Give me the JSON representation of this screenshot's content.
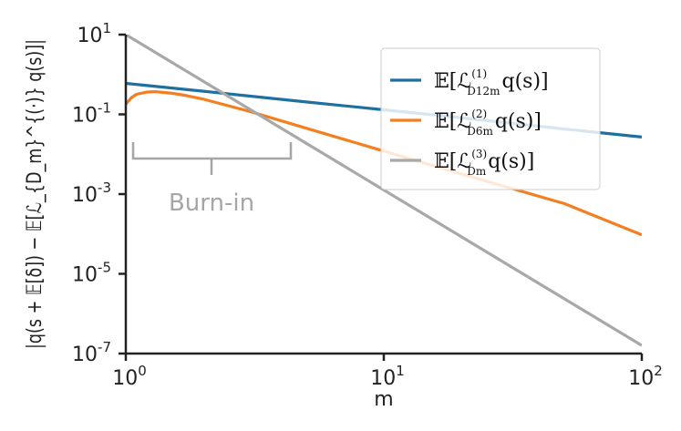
{
  "chart_data": {
    "type": "line",
    "xscale": "log",
    "yscale": "log",
    "xlim": [
      1,
      100
    ],
    "ylim": [
      1e-07,
      10
    ],
    "xlabel": "m",
    "ylabel": "|q(s + 𝔼[δ]) − 𝔼[ℒ_{D_m}^{(·)} q(s)]|",
    "xticks": [
      {
        "value": 1,
        "base": "10",
        "exp": "0"
      },
      {
        "value": 10,
        "base": "10",
        "exp": "1"
      },
      {
        "value": 100,
        "base": "10",
        "exp": "2"
      }
    ],
    "yticks": [
      {
        "value": 10,
        "base": "10",
        "exp": "1"
      },
      {
        "value": 0.1,
        "base": "10",
        "exp": "-1"
      },
      {
        "value": 0.001,
        "base": "10",
        "exp": "-3"
      },
      {
        "value": 1e-05,
        "base": "10",
        "exp": "-5"
      },
      {
        "value": 1e-07,
        "base": "10",
        "exp": "-7"
      }
    ],
    "series": [
      {
        "label_main": "𝔼[ℒ",
        "label_sup": "(1)",
        "label_sub": "D12m",
        "label_tail": "q(s)]",
        "color": "#1f6f9f",
        "x": [
          1,
          2,
          5,
          10,
          20,
          50,
          100
        ],
        "y": [
          0.6,
          0.38,
          0.205,
          0.13,
          0.082,
          0.043,
          0.027
        ]
      },
      {
        "label_main": "𝔼[ℒ",
        "label_sup": "(2)",
        "label_sub": "D6m",
        "label_tail": "q(s)]",
        "color": "#f47f20",
        "x": [
          1,
          1.05,
          1.1,
          1.2,
          1.3,
          1.5,
          1.7,
          2,
          3,
          5,
          10,
          20,
          50,
          100
        ],
        "y": [
          0.18,
          0.26,
          0.32,
          0.36,
          0.37,
          0.34,
          0.3,
          0.24,
          0.12,
          0.045,
          0.012,
          0.0032,
          0.00058,
          9.5e-05
        ]
      },
      {
        "label_main": "𝔼[ℒ",
        "label_sup": "(3)",
        "label_sub": "Dm",
        "label_tail": "q(s)]",
        "color": "#a8a8a8",
        "x": [
          1,
          100
        ],
        "y": [
          10,
          1.6e-07
        ]
      }
    ],
    "legend": "top-right",
    "grid": false,
    "annotations": [
      {
        "text": "Burn-in",
        "x_start": 1.05,
        "x_end": 4.6
      }
    ]
  }
}
